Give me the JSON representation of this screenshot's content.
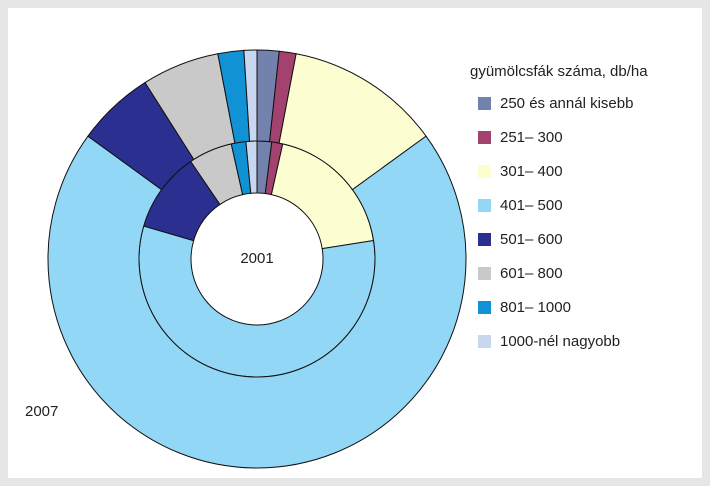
{
  "chart_data": {
    "type": "donut",
    "legend_title": "gyümölcsfák száma, db/ha",
    "categories": [
      "250 és annál kisebb",
      "251– 300",
      "301– 400",
      "401– 500",
      "501– 600",
      "601– 800",
      "801–  1000",
      "1000-nél nagyobb"
    ],
    "colors": [
      "#7381ad",
      "#a3426f",
      "#fdfdd2",
      "#92d7f6",
      "#2b2f8f",
      "#c9c9c9",
      "#1192d5",
      "#c9d6ef"
    ],
    "series": [
      {
        "name": "2001",
        "values": [
          2,
          1.5,
          19,
          57,
          11,
          6,
          2,
          1.5
        ]
      },
      {
        "name": "2007",
        "values": [
          1.7,
          1.3,
          12,
          70,
          6,
          6,
          2,
          1
        ]
      }
    ]
  }
}
